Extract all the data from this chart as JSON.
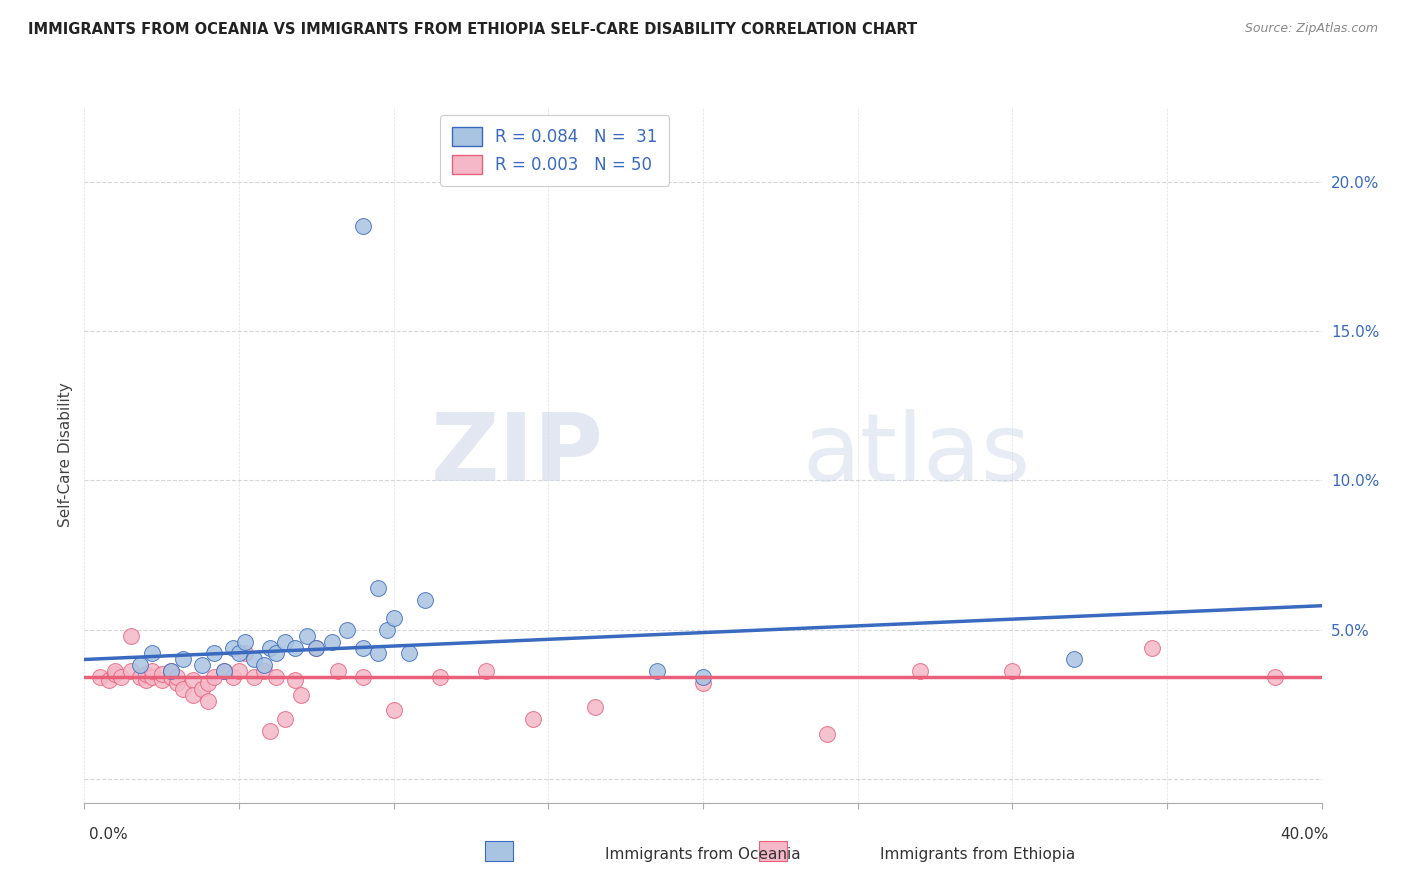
{
  "title": "IMMIGRANTS FROM OCEANIA VS IMMIGRANTS FROM ETHIOPIA SELF-CARE DISABILITY CORRELATION CHART",
  "source": "Source: ZipAtlas.com",
  "ylabel": "Self-Care Disability",
  "yticks": [
    0.0,
    0.05,
    0.1,
    0.15,
    0.2
  ],
  "ytick_labels": [
    "",
    "5.0%",
    "10.0%",
    "15.0%",
    "20.0%"
  ],
  "xlim": [
    0.0,
    0.4
  ],
  "ylim": [
    -0.008,
    0.225
  ],
  "legend_oceania_R": "R = 0.084",
  "legend_oceania_N": "N =  31",
  "legend_ethiopia_R": "R = 0.003",
  "legend_ethiopia_N": "N = 50",
  "oceania_color": "#a8c4e0",
  "ethiopia_color": "#f4b8c8",
  "trend_oceania_color": "#3a6abf",
  "trend_ethiopia_color": "#e8607a",
  "watermark_zip": "ZIP",
  "watermark_atlas": "atlas",
  "oceania_x": [
    0.018,
    0.022,
    0.028,
    0.032,
    0.038,
    0.042,
    0.045,
    0.048,
    0.05,
    0.052,
    0.055,
    0.058,
    0.06,
    0.062,
    0.065,
    0.068,
    0.072,
    0.075,
    0.08,
    0.085,
    0.09,
    0.095,
    0.098,
    0.1,
    0.105,
    0.11,
    0.095,
    0.185,
    0.2,
    0.32,
    0.09
  ],
  "oceania_y": [
    0.038,
    0.042,
    0.036,
    0.04,
    0.038,
    0.042,
    0.036,
    0.044,
    0.042,
    0.046,
    0.04,
    0.038,
    0.044,
    0.042,
    0.046,
    0.044,
    0.048,
    0.044,
    0.046,
    0.05,
    0.044,
    0.042,
    0.05,
    0.054,
    0.042,
    0.06,
    0.064,
    0.036,
    0.034,
    0.04,
    0.185
  ],
  "ethiopia_x": [
    0.005,
    0.008,
    0.01,
    0.01,
    0.012,
    0.015,
    0.015,
    0.018,
    0.02,
    0.02,
    0.022,
    0.022,
    0.025,
    0.025,
    0.028,
    0.028,
    0.03,
    0.03,
    0.032,
    0.035,
    0.035,
    0.038,
    0.04,
    0.04,
    0.042,
    0.045,
    0.048,
    0.05,
    0.052,
    0.055,
    0.058,
    0.06,
    0.062,
    0.065,
    0.068,
    0.07,
    0.075,
    0.082,
    0.09,
    0.1,
    0.115,
    0.13,
    0.145,
    0.165,
    0.2,
    0.24,
    0.27,
    0.3,
    0.345,
    0.385
  ],
  "ethiopia_y": [
    0.034,
    0.033,
    0.035,
    0.036,
    0.034,
    0.036,
    0.048,
    0.034,
    0.033,
    0.035,
    0.034,
    0.036,
    0.033,
    0.035,
    0.034,
    0.036,
    0.032,
    0.034,
    0.03,
    0.033,
    0.028,
    0.03,
    0.032,
    0.026,
    0.034,
    0.036,
    0.034,
    0.036,
    0.042,
    0.034,
    0.036,
    0.016,
    0.034,
    0.02,
    0.033,
    0.028,
    0.044,
    0.036,
    0.034,
    0.023,
    0.034,
    0.036,
    0.02,
    0.024,
    0.032,
    0.015,
    0.036,
    0.036,
    0.044,
    0.034
  ],
  "trend_oceania_x0": 0.0,
  "trend_oceania_y0": 0.04,
  "trend_oceania_x1": 0.4,
  "trend_oceania_y1": 0.058,
  "trend_ethiopia_x0": 0.0,
  "trend_ethiopia_y0": 0.034,
  "trend_ethiopia_x1": 0.4,
  "trend_ethiopia_y1": 0.034
}
